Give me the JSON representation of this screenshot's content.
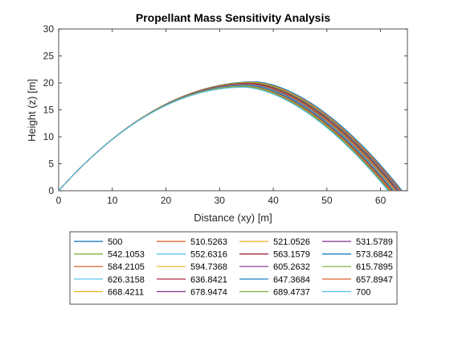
{
  "chart_data": {
    "type": "line",
    "title": "Propellant Mass Sensitivity Analysis",
    "xlabel": "Distance (xy) [m]",
    "ylabel": "Height (z) [m]",
    "xlim": [
      0,
      65
    ],
    "ylim": [
      0,
      30
    ],
    "xticks": [
      0,
      10,
      20,
      30,
      40,
      50,
      60
    ],
    "yticks": [
      0,
      5,
      10,
      15,
      20,
      25,
      30
    ],
    "grid": false,
    "legend": {
      "placement": "bottom-outside",
      "columns": 4
    },
    "series": [
      {
        "name": "500",
        "color": "#0072BD",
        "range": 64.0,
        "apex_x": 36.5,
        "apex_y": 20.2
      },
      {
        "name": "510.5263",
        "color": "#D95319",
        "range": 63.8,
        "apex_x": 36.3,
        "apex_y": 20.1
      },
      {
        "name": "521.0526",
        "color": "#EDB120",
        "range": 63.7,
        "apex_x": 36.2,
        "apex_y": 20.1
      },
      {
        "name": "531.5789",
        "color": "#7E2F8E",
        "range": 63.6,
        "apex_x": 36.1,
        "apex_y": 20.0
      },
      {
        "name": "542.1053",
        "color": "#77AC30",
        "range": 63.4,
        "apex_x": 36.0,
        "apex_y": 20.0
      },
      {
        "name": "552.6316",
        "color": "#4DBEEE",
        "range": 63.3,
        "apex_x": 35.9,
        "apex_y": 19.9
      },
      {
        "name": "563.1579",
        "color": "#A2142F",
        "range": 63.2,
        "apex_x": 35.8,
        "apex_y": 19.9
      },
      {
        "name": "573.6842",
        "color": "#0072BD",
        "range": 63.0,
        "apex_x": 35.7,
        "apex_y": 19.8
      },
      {
        "name": "584.2105",
        "color": "#D95319",
        "range": 62.9,
        "apex_x": 35.6,
        "apex_y": 19.8
      },
      {
        "name": "594.7368",
        "color": "#EDB120",
        "range": 62.8,
        "apex_x": 35.5,
        "apex_y": 19.7
      },
      {
        "name": "605.2632",
        "color": "#7E2F8E",
        "range": 62.6,
        "apex_x": 35.4,
        "apex_y": 19.7
      },
      {
        "name": "615.7895",
        "color": "#77AC30",
        "range": 62.5,
        "apex_x": 35.3,
        "apex_y": 19.6
      },
      {
        "name": "626.3158",
        "color": "#4DBEEE",
        "range": 62.4,
        "apex_x": 35.2,
        "apex_y": 19.6
      },
      {
        "name": "636.8421",
        "color": "#A2142F",
        "range": 62.2,
        "apex_x": 35.1,
        "apex_y": 19.5
      },
      {
        "name": "647.3684",
        "color": "#0072BD",
        "range": 62.1,
        "apex_x": 35.0,
        "apex_y": 19.5
      },
      {
        "name": "657.8947",
        "color": "#D95319",
        "range": 62.0,
        "apex_x": 34.9,
        "apex_y": 19.4
      },
      {
        "name": "668.4211",
        "color": "#EDB120",
        "range": 61.8,
        "apex_x": 34.8,
        "apex_y": 19.4
      },
      {
        "name": "678.9474",
        "color": "#7E2F8E",
        "range": 61.7,
        "apex_x": 34.7,
        "apex_y": 19.3
      },
      {
        "name": "689.4737",
        "color": "#77AC30",
        "range": 61.6,
        "apex_x": 34.6,
        "apex_y": 19.3
      },
      {
        "name": "700",
        "color": "#4DBEEE",
        "range": 61.4,
        "apex_x": 34.5,
        "apex_y": 19.2
      }
    ]
  }
}
